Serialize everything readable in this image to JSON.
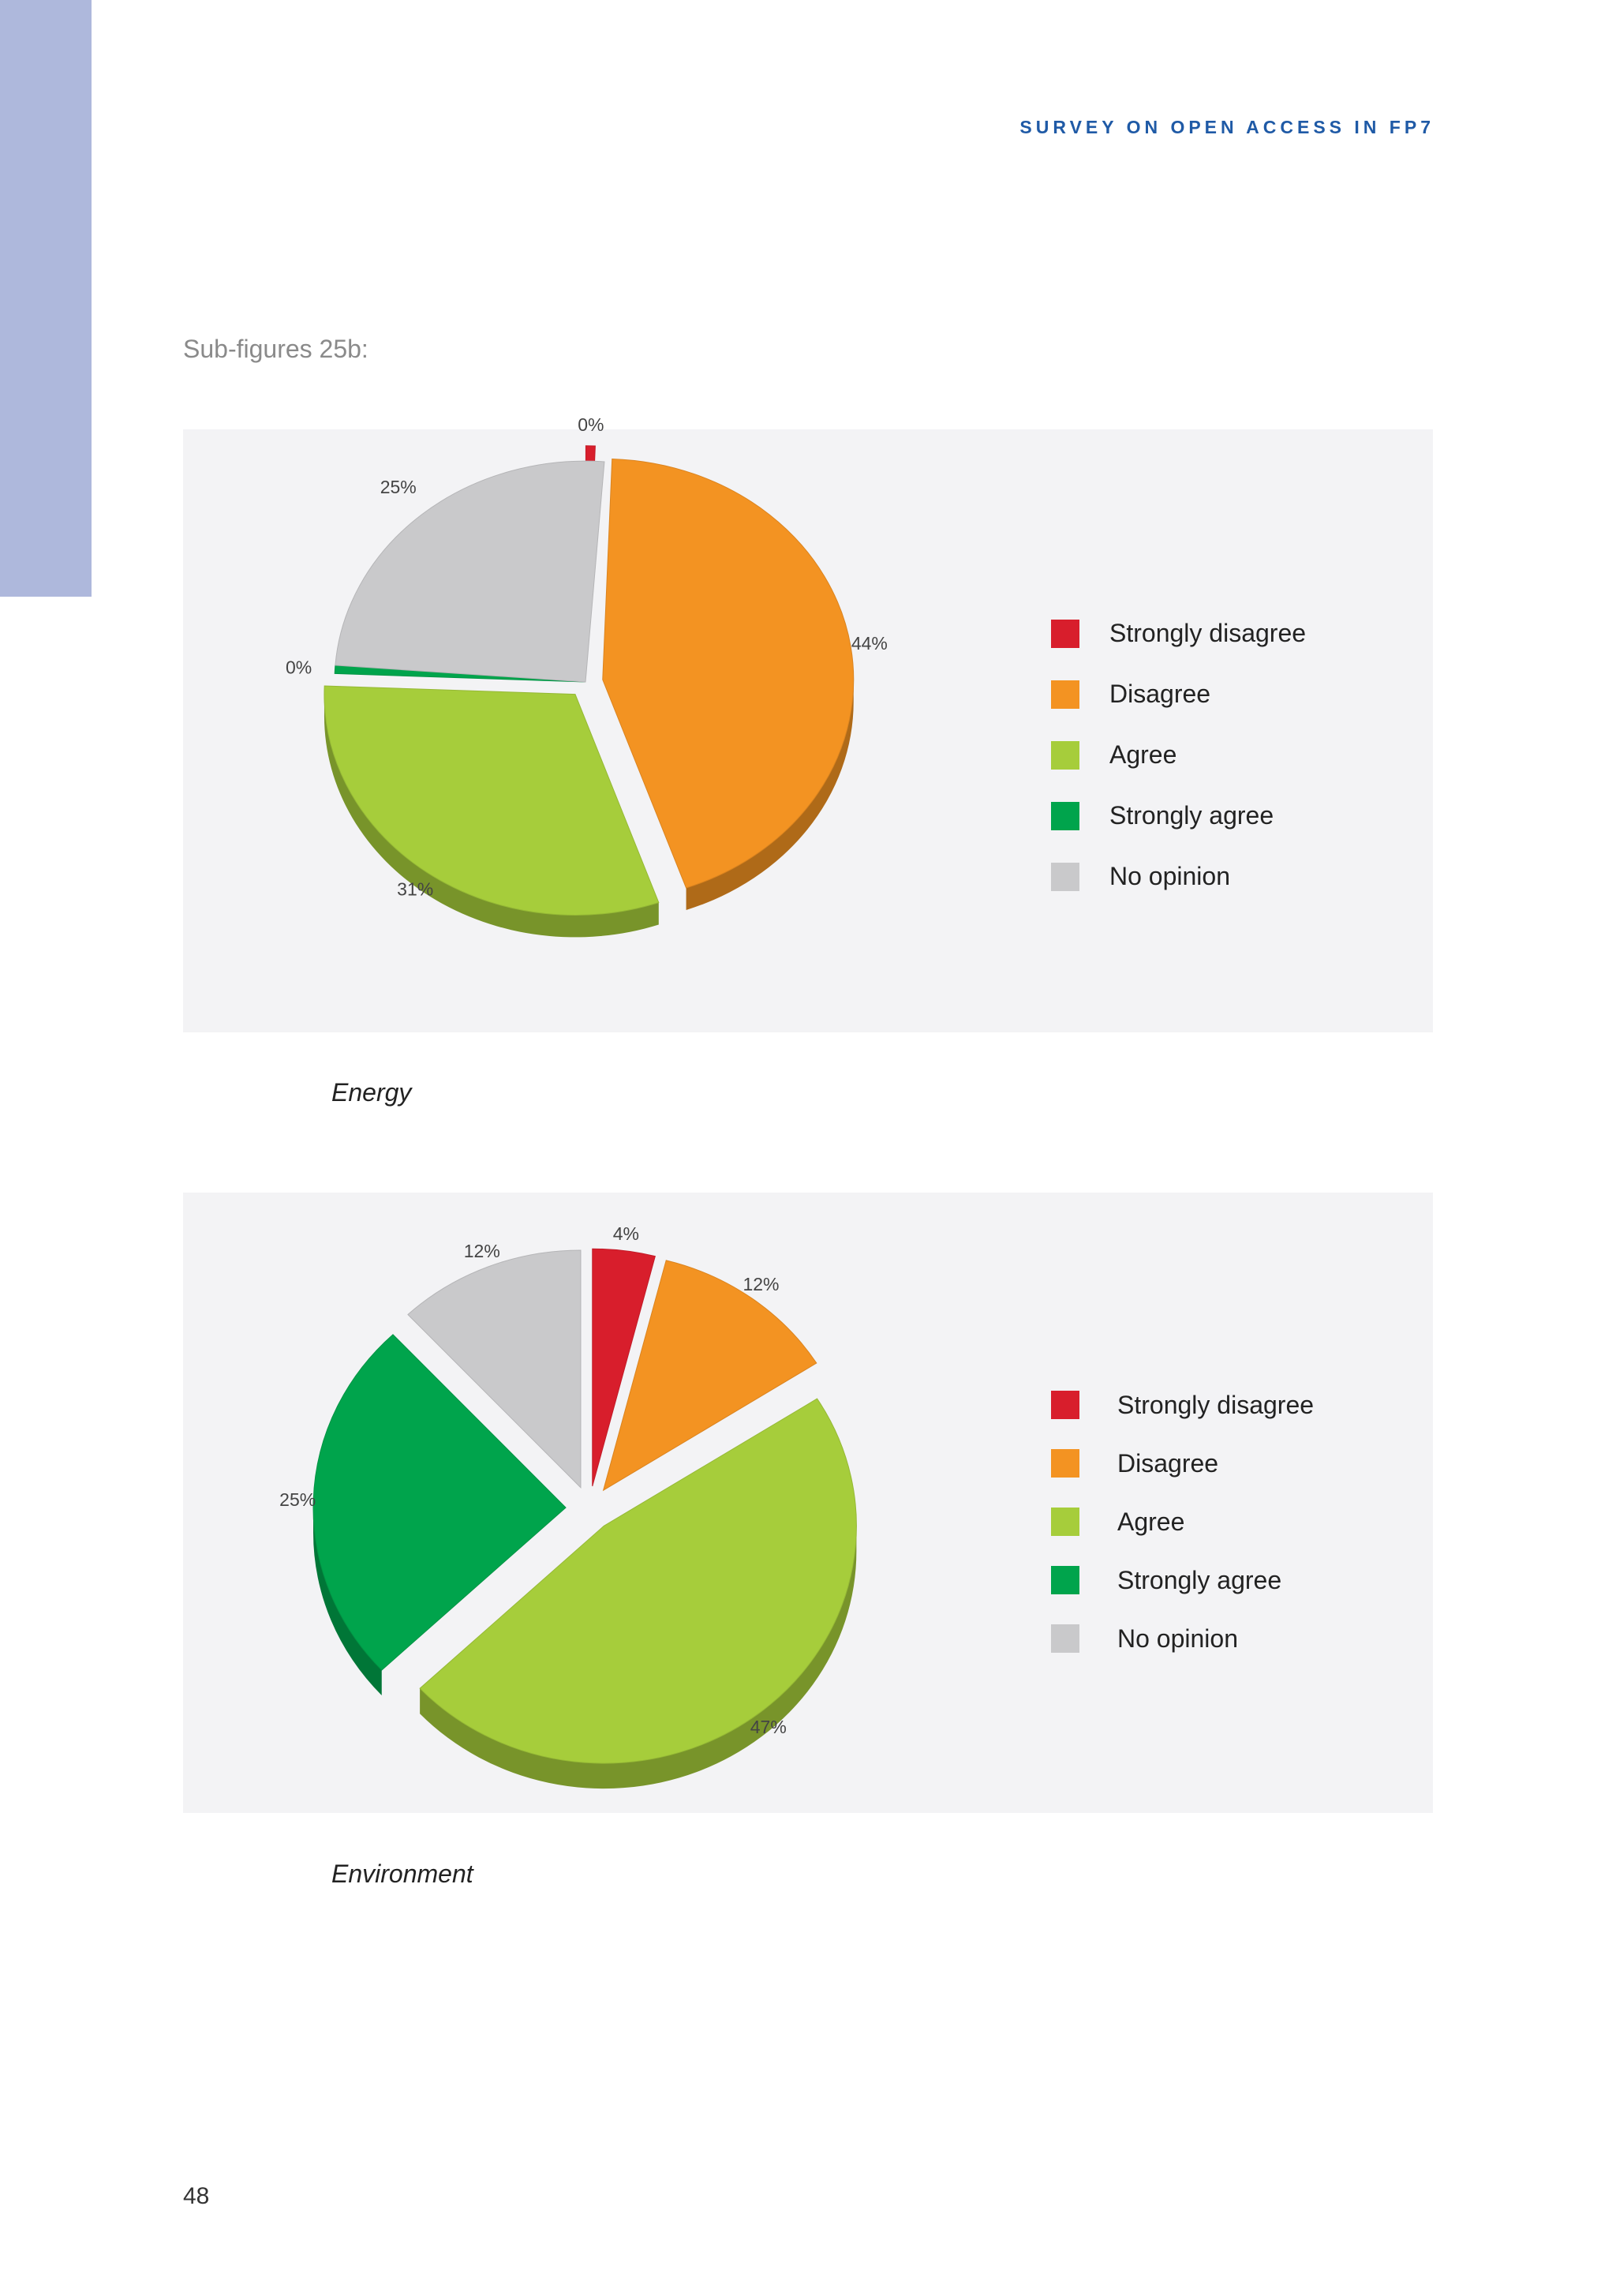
{
  "header": {
    "running_title": "SURVEY ON OPEN ACCESS IN FP7"
  },
  "section": {
    "label": "Sub-figures 25b:"
  },
  "colors": {
    "strongly_disagree": "#d81e2c",
    "disagree": "#f39322",
    "agree": "#a6cd3b",
    "strongly_agree": "#00a44c",
    "no_opinion": "#c9c9cb",
    "panel_background": "#f3f3f5",
    "side_band": "#aeb8dc",
    "header_text": "#1f5aa6"
  },
  "chart_data": [
    {
      "type": "pie",
      "caption": "Energy",
      "categories": [
        "Strongly disagree",
        "Disagree",
        "Agree",
        "Strongly agree",
        "No opinion"
      ],
      "values": [
        0,
        44,
        31,
        0,
        25
      ],
      "data_labels": [
        "0%",
        "44%",
        "31%",
        "0%",
        "25%"
      ],
      "exploded": [
        true,
        true,
        true,
        false,
        false
      ],
      "legend_position": "right",
      "style": "3d"
    },
    {
      "type": "pie",
      "caption": "Environment",
      "categories": [
        "Strongly disagree",
        "Disagree",
        "Agree",
        "Strongly agree",
        "No opinion"
      ],
      "values": [
        4,
        12,
        47,
        25,
        12
      ],
      "data_labels": [
        "4%",
        "12%",
        "47%",
        "25%",
        "12%"
      ],
      "exploded": [
        true,
        true,
        true,
        true,
        true
      ],
      "legend_position": "right",
      "style": "3d"
    }
  ],
  "legend": {
    "items": [
      {
        "label": "Strongly disagree",
        "color": "#d81e2c"
      },
      {
        "label": "Disagree",
        "color": "#f39322"
      },
      {
        "label": "Agree",
        "color": "#a6cd3b"
      },
      {
        "label": "Strongly agree",
        "color": "#00a44c"
      },
      {
        "label": "No opinion",
        "color": "#c9c9cb"
      }
    ]
  },
  "footer": {
    "page_number": "48"
  }
}
